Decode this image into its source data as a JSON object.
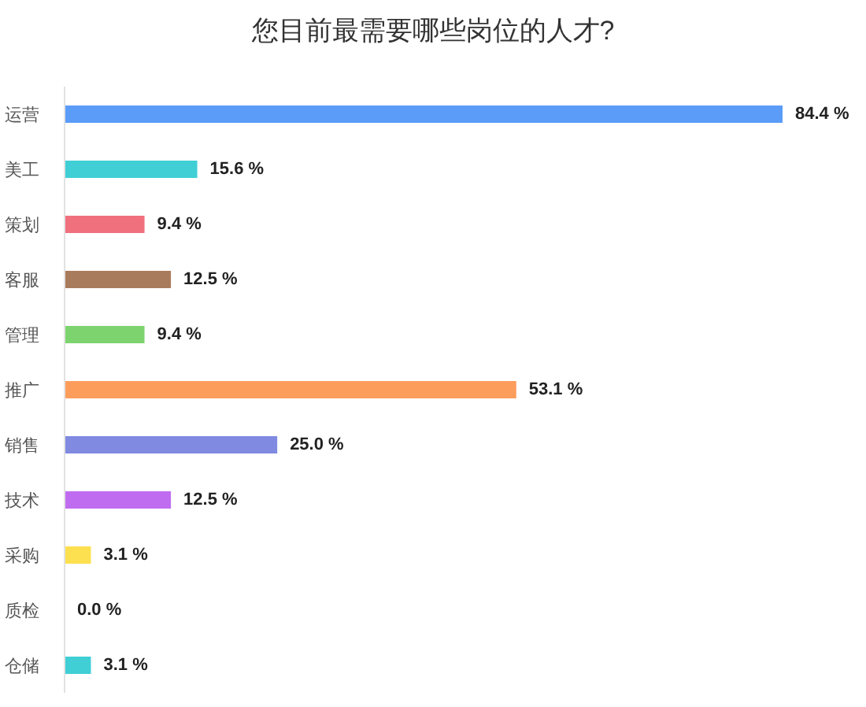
{
  "chart_data": {
    "type": "bar",
    "orientation": "horizontal",
    "title": "您目前最需要哪些岗位的人才?",
    "categories": [
      "运营",
      "美工",
      "策划",
      "客服",
      "管理",
      "推广",
      "销售",
      "技术",
      "采购",
      "质检",
      "仓储"
    ],
    "values": [
      84.4,
      15.6,
      9.4,
      12.5,
      9.4,
      53.1,
      25.0,
      12.5,
      3.1,
      0.0,
      3.1
    ],
    "colors": [
      "#5a9cf8",
      "#3fcfd5",
      "#f0707e",
      "#a97b5d",
      "#7dd46f",
      "#fd9d5c",
      "#7f8ae0",
      "#c06cf0",
      "#fde050",
      "#7f8ae0",
      "#3fcfd5"
    ],
    "value_labels": [
      "84.4 %",
      "15.6 %",
      "9.4 %",
      "12.5 %",
      "9.4 %",
      "53.1 %",
      "25.0 %",
      "12.5 %",
      "3.1 %",
      "0.0 %",
      "3.1 %"
    ],
    "tick_labels": "y",
    "grid": false,
    "legend": false
  }
}
